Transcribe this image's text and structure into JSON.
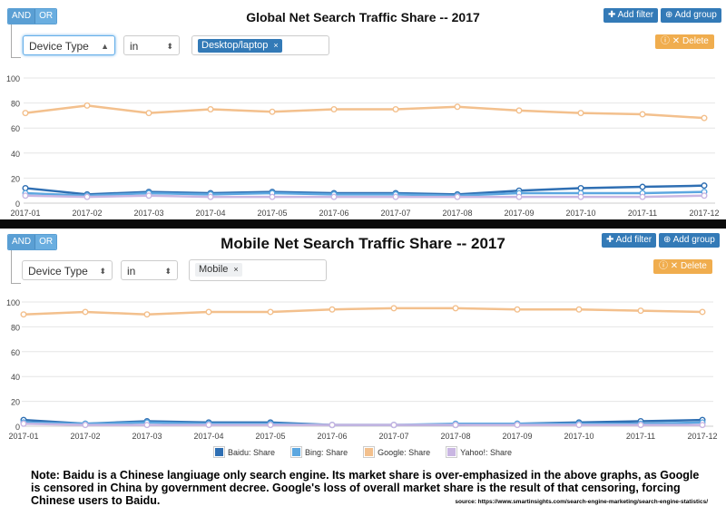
{
  "controls": {
    "and_label": "AND",
    "or_label": "OR",
    "add_filter_label": "Add filter",
    "add_group_label": "Add group",
    "delete_label": "Delete",
    "field_value": "Device Type",
    "operator_value": "in"
  },
  "top": {
    "title": "Global Net Search Traffic Share -- 2017",
    "tag_value": "Desktop/laptop"
  },
  "bottom": {
    "title": "Mobile Net Search Traffic Share --  2017",
    "tag_value": "Mobile"
  },
  "legend": {
    "items": [
      "Baidu: Share",
      "Bing: Share",
      "Google: Share",
      "Yahoo!: Share"
    ]
  },
  "colors": {
    "baidu": "#2f6fb3",
    "bing": "#5ca7e0",
    "google": "#f3c08d",
    "yahoo": "#c9b6e2",
    "button_blue": "#337ab7",
    "button_orange": "#f0ad4e"
  },
  "note": {
    "text": "Note: Baidu is a Chinese langiuage only  search engine.  Its market share is over-emphasized in the above graphs, as Google is censored in China by government decree.   Google's loss of overall market share is the result of that censoring, forcing Chinese users to Baidu.",
    "source": "source: https://www.smartinsights.com/search-engine-marketing/search-engine-statistics/"
  },
  "chart_data": [
    {
      "type": "line",
      "title": "Global Net Search Traffic Share -- 2017",
      "categories": [
        "2017-01",
        "2017-02",
        "2017-03",
        "2017-04",
        "2017-05",
        "2017-06",
        "2017-07",
        "2017-08",
        "2017-09",
        "2017-10",
        "2017-11",
        "2017-12"
      ],
      "ylim": [
        0,
        100
      ],
      "yticks": [
        0,
        20,
        40,
        60,
        80,
        100
      ],
      "grid": true,
      "series": [
        {
          "name": "Google: Share",
          "color": "#f3c08d",
          "values": [
            72,
            78,
            72,
            75,
            73,
            75,
            75,
            77,
            74,
            72,
            71,
            68
          ]
        },
        {
          "name": "Baidu: Share",
          "color": "#2f6fb3",
          "values": [
            12,
            7,
            9,
            8,
            9,
            8,
            8,
            7,
            10,
            12,
            13,
            14
          ]
        },
        {
          "name": "Bing: Share",
          "color": "#5ca7e0",
          "values": [
            8,
            6,
            8,
            7,
            8,
            7,
            7,
            6,
            8,
            8,
            8,
            9
          ]
        },
        {
          "name": "Yahoo!: Share",
          "color": "#c9b6e2",
          "values": [
            6,
            5,
            6,
            5,
            5,
            5,
            5,
            5,
            5,
            5,
            5,
            6
          ]
        }
      ]
    },
    {
      "type": "line",
      "title": "Mobile Net Search Traffic Share --  2017",
      "categories": [
        "2017-01",
        "2017-02",
        "2017-03",
        "2017-04",
        "2017-05",
        "2017-06",
        "2017-07",
        "2017-08",
        "2017-09",
        "2017-10",
        "2017-11",
        "2017-12"
      ],
      "ylim": [
        0,
        100
      ],
      "yticks": [
        0,
        20,
        40,
        60,
        80,
        100
      ],
      "grid": true,
      "legend_position": "bottom",
      "series": [
        {
          "name": "Google: Share",
          "color": "#f3c08d",
          "values": [
            90,
            92,
            90,
            92,
            92,
            94,
            95,
            95,
            94,
            94,
            93,
            92
          ]
        },
        {
          "name": "Baidu: Share",
          "color": "#2f6fb3",
          "values": [
            5,
            2,
            4,
            3,
            3,
            1,
            1,
            1,
            2,
            3,
            4,
            5
          ]
        },
        {
          "name": "Bing: Share",
          "color": "#5ca7e0",
          "values": [
            3,
            2,
            3,
            2,
            2,
            1,
            1,
            2,
            2,
            2,
            2,
            3
          ]
        },
        {
          "name": "Yahoo!: Share",
          "color": "#c9b6e2",
          "values": [
            2,
            1,
            1,
            1,
            1,
            1,
            1,
            1,
            1,
            1,
            1,
            1
          ]
        }
      ]
    }
  ]
}
